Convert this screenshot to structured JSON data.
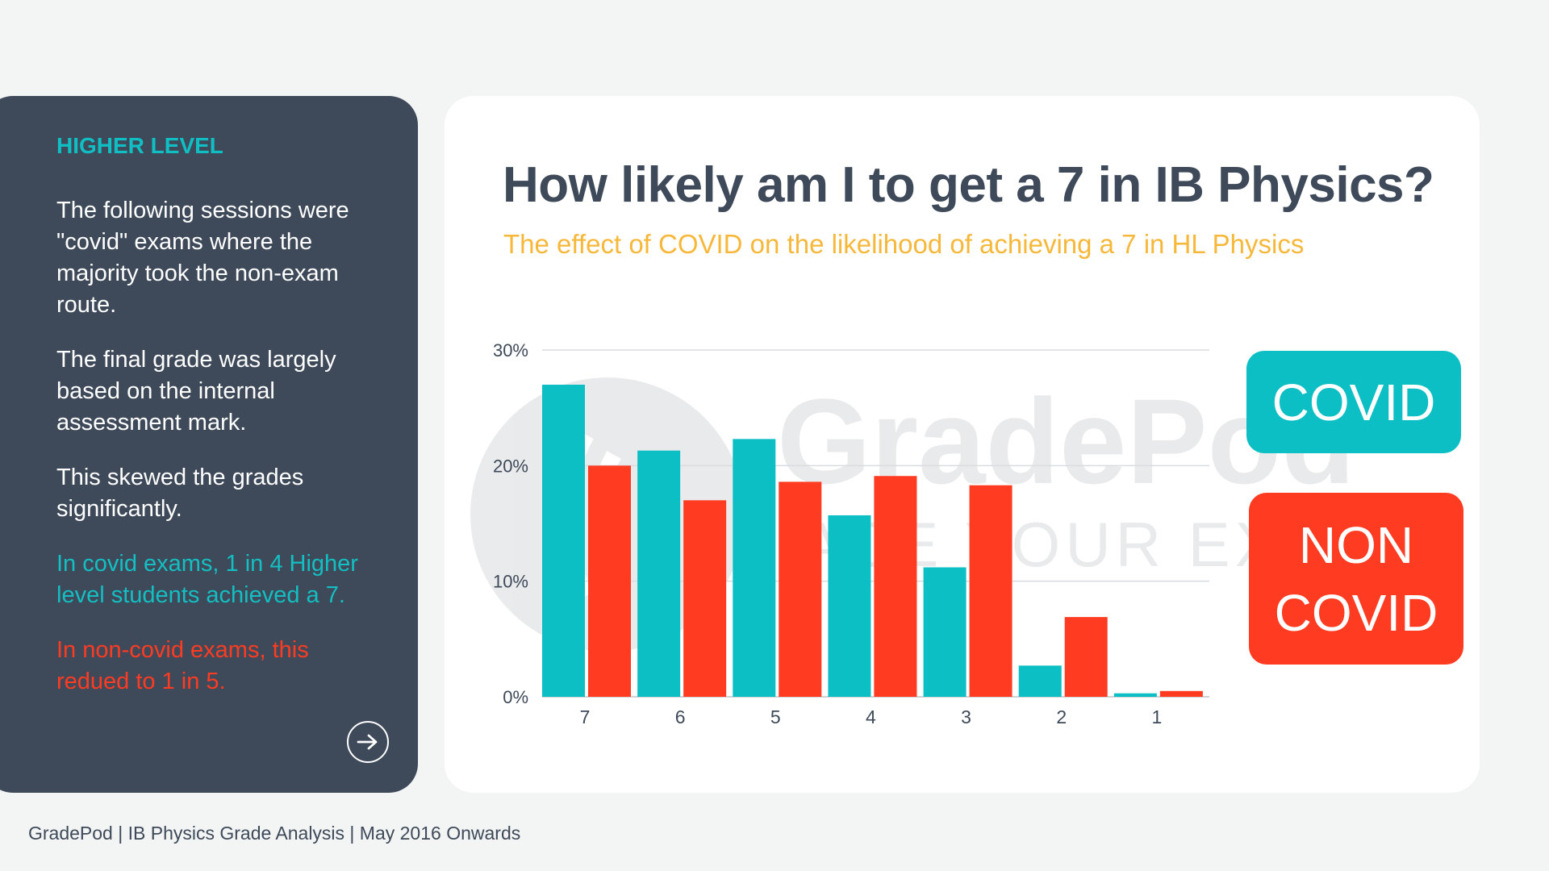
{
  "side_panel": {
    "heading": "HIGHER LEVEL",
    "para1": "The following sessions were \"covid\" exams where the majority took the non-exam route.",
    "para2": "The final grade was largely based on the internal assessment mark.",
    "para3": "This skewed the grades significantly.",
    "para4": "In covid exams, 1 in 4 Higher level students achieved a 7.",
    "para5": "In non-covid exams, this redued to 1 in 5."
  },
  "watermark": {
    "brand": "GradePod",
    "tagline": "ACE YOUR EXAMS"
  },
  "footer": {
    "text": "GradePod | IB Physics Grade Analysis | May 2016 Onwards"
  },
  "colors": {
    "covid": "#0cbfc4",
    "non_covid": "#ff3b22",
    "panel": "#3e4a59",
    "subtitle": "#f7b83a"
  },
  "chart_data": {
    "type": "bar",
    "title": "How likely am I to get a 7 in IB Physics?",
    "subtitle": "The effect of COVID on the likelihood of achieving a 7 in HL Physics",
    "categories": [
      "7",
      "6",
      "5",
      "4",
      "3",
      "2",
      "1"
    ],
    "series": [
      {
        "name": "COVID",
        "values": [
          27.0,
          21.3,
          22.3,
          15.7,
          11.2,
          2.7,
          0.3
        ]
      },
      {
        "name": "NON COVID",
        "values": [
          20.0,
          17.0,
          18.6,
          19.1,
          18.3,
          6.9,
          0.5
        ]
      }
    ],
    "yticks": [
      "0%",
      "10%",
      "20%",
      "30%"
    ],
    "ylim": [
      0,
      30
    ],
    "grid": true,
    "legend_position": "right"
  }
}
